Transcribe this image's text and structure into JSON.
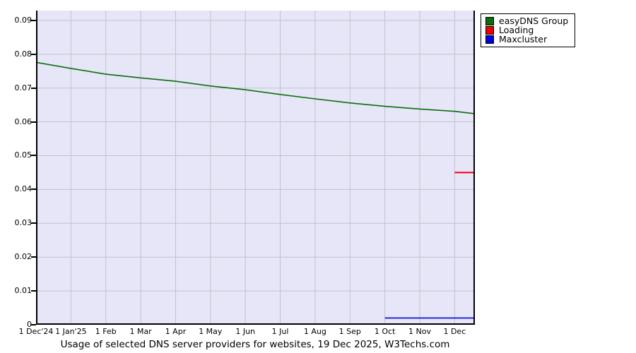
{
  "chart_data": {
    "type": "line",
    "title": "",
    "caption": "Usage of selected DNS server providers for websites, 19 Dec 2025, W3Techs.com",
    "xlabel": "",
    "ylabel": "",
    "categories": [
      "1 Dec'24",
      "1 Jan'25",
      "1 Feb",
      "1 Mar",
      "1 Apr",
      "1 May",
      "1 Jun",
      "1 Jul",
      "1 Aug",
      "1 Sep",
      "1 Oct",
      "1 Nov",
      "1 Dec"
    ],
    "category_x": [
      0,
      1,
      2,
      3,
      4,
      5,
      6,
      7,
      8,
      9,
      10,
      11,
      12
    ],
    "xlim": [
      0,
      12.58
    ],
    "ylim": [
      0,
      0.0929
    ],
    "ytick_values": [
      0,
      0.01,
      0.02,
      0.03,
      0.04,
      0.05,
      0.06,
      0.07,
      0.08,
      0.09
    ],
    "ytick_labels": [
      "0",
      "0.01",
      "0.02",
      "0.03",
      "0.04",
      "0.05",
      "0.06",
      "0.07",
      "0.08",
      "0.09"
    ],
    "grid": true,
    "legend_position": "top-right-outside",
    "series": [
      {
        "name": "easyDNS Group",
        "color": "#0a6e0a",
        "stroke_width": 1.6,
        "x": [
          0,
          1,
          2,
          3,
          4,
          5,
          6,
          7,
          8,
          9,
          10,
          11,
          12,
          12.58
        ],
        "values": [
          0.0776,
          0.0758,
          0.0741,
          0.073,
          0.072,
          0.0706,
          0.0695,
          0.0681,
          0.0668,
          0.0656,
          0.0646,
          0.0638,
          0.0631,
          0.0624
        ]
      },
      {
        "name": "Loading",
        "color": "#ee0000",
        "stroke_width": 2,
        "x": [
          12,
          12.58
        ],
        "values": [
          0.045,
          0.045
        ]
      },
      {
        "name": "Maxcluster",
        "color": "#0000e0",
        "stroke_width": 1.6,
        "x": [
          10,
          12.58
        ],
        "values": [
          0.002,
          0.002
        ]
      }
    ]
  },
  "colors": {
    "plot_background": "#e6e6f8",
    "gridline": "#c2c2c8",
    "axis": "#000000"
  }
}
